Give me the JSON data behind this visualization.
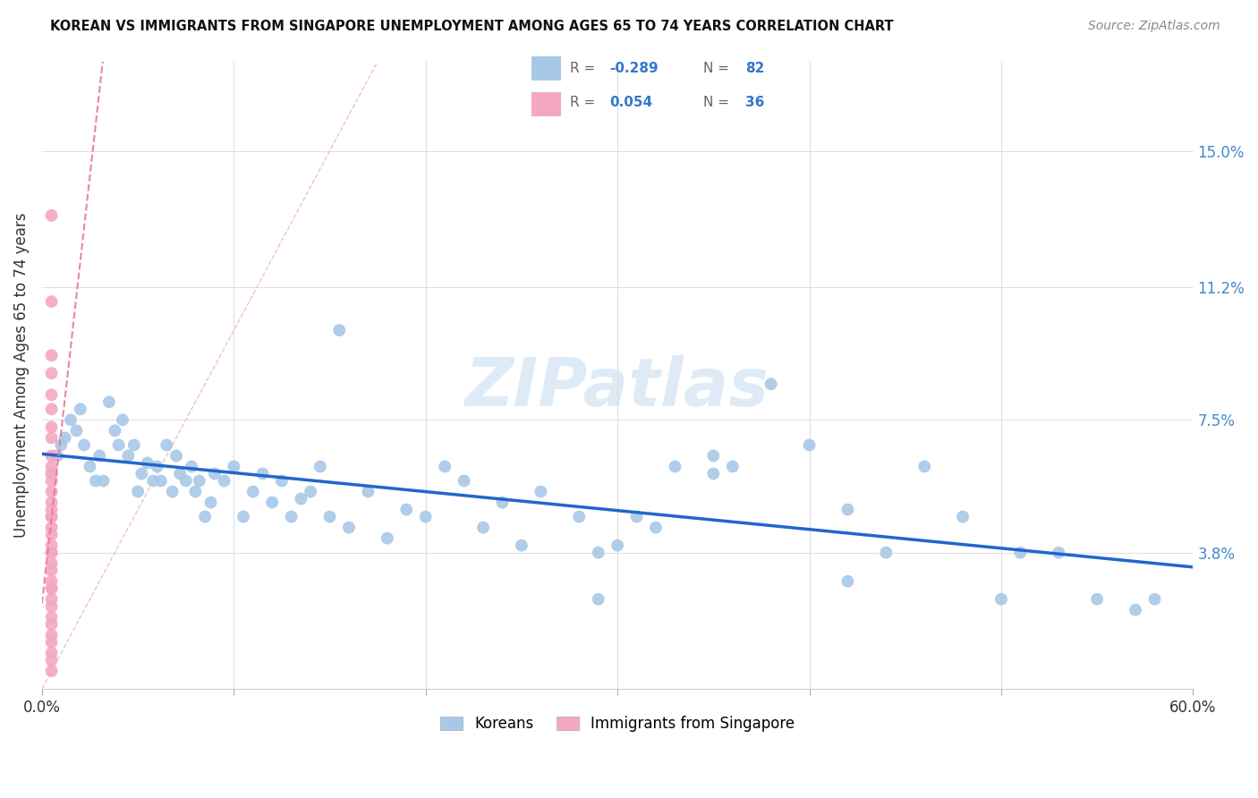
{
  "title": "KOREAN VS IMMIGRANTS FROM SINGAPORE UNEMPLOYMENT AMONG AGES 65 TO 74 YEARS CORRELATION CHART",
  "source": "Source: ZipAtlas.com",
  "ylabel": "Unemployment Among Ages 65 to 74 years",
  "xlim": [
    0.0,
    0.6
  ],
  "ylim": [
    0.0,
    0.175
  ],
  "ytick_positions": [
    0.038,
    0.075,
    0.112,
    0.15
  ],
  "ytick_labels": [
    "3.8%",
    "7.5%",
    "11.2%",
    "15.0%"
  ],
  "korean_color": "#a8c8e8",
  "singapore_color": "#f4a8c0",
  "trendline_korean_color": "#2266cc",
  "trendline_singapore_color": "#e87898",
  "watermark_color": "#c8dff0",
  "background_color": "#ffffff",
  "grid_color": "#e0e0e0",
  "legend_R1": "-0.289",
  "legend_N1": "82",
  "legend_R2": "0.054",
  "legend_N2": "36",
  "korean_x": [
    0.005,
    0.008,
    0.01,
    0.012,
    0.015,
    0.018,
    0.02,
    0.022,
    0.025,
    0.028,
    0.03,
    0.032,
    0.035,
    0.038,
    0.04,
    0.042,
    0.045,
    0.048,
    0.05,
    0.052,
    0.055,
    0.058,
    0.06,
    0.062,
    0.065,
    0.068,
    0.07,
    0.072,
    0.075,
    0.078,
    0.08,
    0.082,
    0.085,
    0.088,
    0.09,
    0.095,
    0.1,
    0.105,
    0.11,
    0.115,
    0.12,
    0.125,
    0.13,
    0.135,
    0.14,
    0.145,
    0.15,
    0.16,
    0.17,
    0.18,
    0.19,
    0.2,
    0.21,
    0.22,
    0.23,
    0.24,
    0.25,
    0.26,
    0.28,
    0.29,
    0.3,
    0.31,
    0.32,
    0.33,
    0.35,
    0.36,
    0.38,
    0.4,
    0.42,
    0.44,
    0.46,
    0.48,
    0.5,
    0.51,
    0.53,
    0.55,
    0.57,
    0.58,
    0.35,
    0.42,
    0.29,
    0.155
  ],
  "korean_y": [
    0.06,
    0.065,
    0.068,
    0.07,
    0.075,
    0.072,
    0.078,
    0.068,
    0.062,
    0.058,
    0.065,
    0.058,
    0.08,
    0.072,
    0.068,
    0.075,
    0.065,
    0.068,
    0.055,
    0.06,
    0.063,
    0.058,
    0.062,
    0.058,
    0.068,
    0.055,
    0.065,
    0.06,
    0.058,
    0.062,
    0.055,
    0.058,
    0.048,
    0.052,
    0.06,
    0.058,
    0.062,
    0.048,
    0.055,
    0.06,
    0.052,
    0.058,
    0.048,
    0.053,
    0.055,
    0.062,
    0.048,
    0.045,
    0.055,
    0.042,
    0.05,
    0.048,
    0.062,
    0.058,
    0.045,
    0.052,
    0.04,
    0.055,
    0.048,
    0.038,
    0.04,
    0.048,
    0.045,
    0.062,
    0.06,
    0.062,
    0.085,
    0.068,
    0.05,
    0.038,
    0.062,
    0.048,
    0.025,
    0.038,
    0.038,
    0.025,
    0.022,
    0.025,
    0.065,
    0.03,
    0.025,
    0.1
  ],
  "singapore_x": [
    0.005,
    0.005,
    0.005,
    0.005,
    0.005,
    0.005,
    0.005,
    0.005,
    0.005,
    0.005,
    0.005,
    0.005,
    0.005,
    0.005,
    0.005,
    0.005,
    0.005,
    0.005,
    0.005,
    0.005,
    0.005,
    0.005,
    0.005,
    0.005,
    0.005,
    0.005,
    0.005,
    0.005,
    0.005,
    0.005,
    0.005,
    0.005,
    0.005,
    0.005,
    0.005,
    0.005
  ],
  "singapore_y": [
    0.132,
    0.108,
    0.093,
    0.088,
    0.082,
    0.078,
    0.073,
    0.07,
    0.065,
    0.062,
    0.06,
    0.058,
    0.055,
    0.052,
    0.05,
    0.048,
    0.045,
    0.043,
    0.04,
    0.038,
    0.035,
    0.033,
    0.03,
    0.028,
    0.025,
    0.023,
    0.02,
    0.018,
    0.015,
    0.013,
    0.01,
    0.008,
    0.005,
    0.038,
    0.048,
    0.028
  ]
}
